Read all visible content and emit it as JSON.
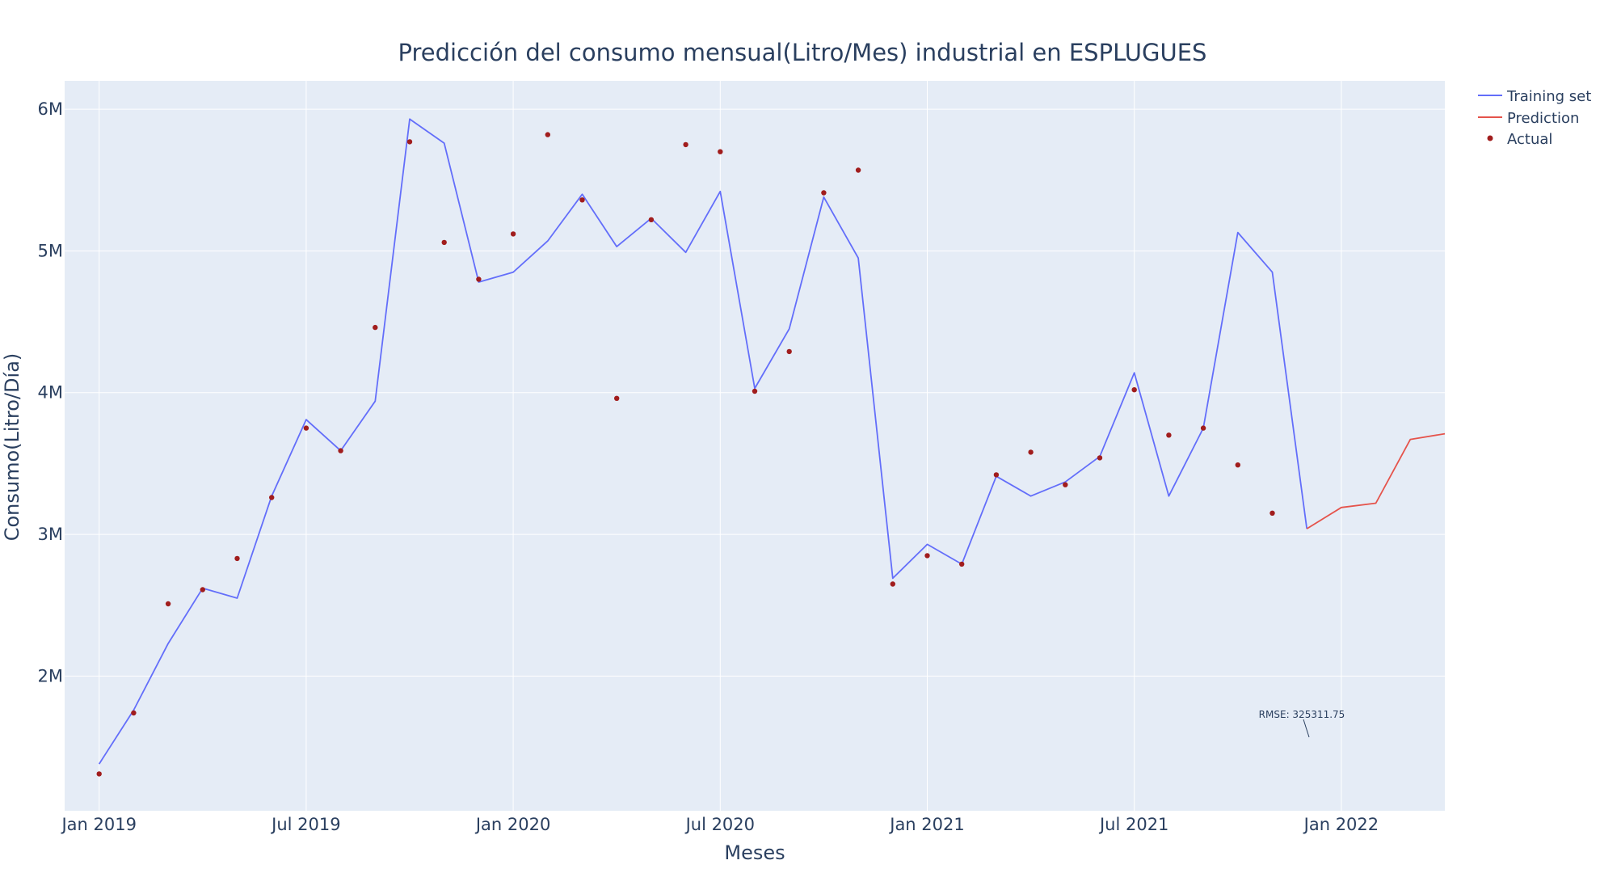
{
  "chart_data": {
    "type": "line",
    "title": "Predicción del consumo mensual(Litro/Mes) industrial en ESPLUGUES",
    "xlabel": "Meses",
    "ylabel": "Consumo(Litro/Día)",
    "x_ticks": [
      "Jan 2019",
      "Jul 2019",
      "Jan 2020",
      "Jul 2020",
      "Jan 2021",
      "Jul 2021",
      "Jan 2022"
    ],
    "y_ticks": [
      "2M",
      "3M",
      "4M",
      "5M",
      "6M"
    ],
    "ylim": [
      1050000,
      6200000
    ],
    "grid": true,
    "legend_position": "top-right",
    "annotation": "RMSE: 325311.75",
    "series": [
      {
        "name": "Training set",
        "mode": "line",
        "color": "#636efa",
        "x": [
          "2019-01",
          "2019-02",
          "2019-03",
          "2019-04",
          "2019-05",
          "2019-06",
          "2019-07",
          "2019-08",
          "2019-09",
          "2019-10",
          "2019-11",
          "2019-12",
          "2020-01",
          "2020-02",
          "2020-03",
          "2020-04",
          "2020-05",
          "2020-06",
          "2020-07",
          "2020-08",
          "2020-09",
          "2020-10",
          "2020-11",
          "2020-12",
          "2021-01",
          "2021-02",
          "2021-03",
          "2021-04",
          "2021-05",
          "2021-06",
          "2021-07",
          "2021-08",
          "2021-09",
          "2021-10",
          "2021-11",
          "2021-12"
        ],
        "values": [
          1380000,
          1760000,
          2230000,
          2620000,
          2550000,
          3270000,
          3810000,
          3590000,
          3940000,
          5930000,
          5760000,
          4780000,
          4850000,
          5070000,
          5400000,
          5030000,
          5230000,
          4990000,
          5420000,
          4030000,
          4450000,
          5380000,
          4950000,
          2690000,
          2930000,
          2790000,
          3410000,
          3270000,
          3370000,
          3550000,
          4140000,
          3270000,
          3750000,
          5130000,
          4850000,
          3040000
        ]
      },
      {
        "name": "Prediction",
        "mode": "line",
        "color": "#e5534b",
        "x": [
          "2021-12",
          "2022-01",
          "2022-02",
          "2022-03",
          "2022-04"
        ],
        "values": [
          3040000,
          3190000,
          3220000,
          3670000,
          3710000
        ]
      },
      {
        "name": "Actual",
        "mode": "markers",
        "color": "#a11d1d",
        "x": [
          "2019-01",
          "2019-02",
          "2019-03",
          "2019-04",
          "2019-05",
          "2019-06",
          "2019-07",
          "2019-08",
          "2019-09",
          "2019-10",
          "2019-11",
          "2019-12",
          "2020-01",
          "2020-02",
          "2020-03",
          "2020-04",
          "2020-05",
          "2020-06",
          "2020-07",
          "2020-08",
          "2020-09",
          "2020-10",
          "2020-11",
          "2020-12",
          "2021-01",
          "2021-02",
          "2021-03",
          "2021-04",
          "2021-05",
          "2021-06",
          "2021-07",
          "2021-08",
          "2021-09",
          "2021-10",
          "2021-11"
        ],
        "values": [
          1310000,
          1740000,
          2510000,
          2610000,
          2830000,
          3260000,
          3750000,
          3590000,
          4460000,
          5770000,
          5060000,
          4800000,
          5120000,
          5820000,
          5360000,
          3960000,
          5220000,
          5750000,
          5700000,
          4010000,
          4290000,
          5410000,
          5570000,
          2650000,
          2850000,
          2790000,
          3420000,
          3580000,
          3350000,
          3540000,
          4020000,
          3700000,
          3750000,
          3490000,
          3150000
        ]
      }
    ]
  }
}
